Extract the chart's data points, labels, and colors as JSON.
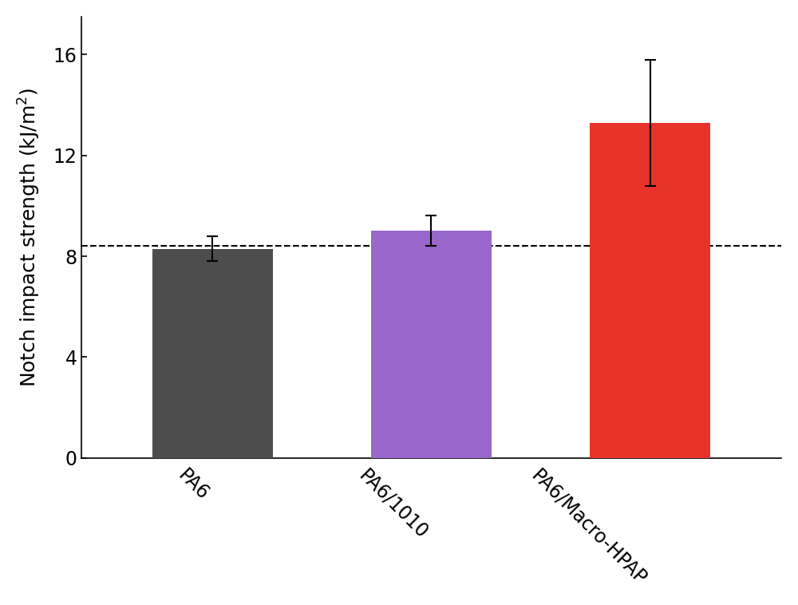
{
  "categories": [
    "PA6",
    "PA6/1010",
    "PA6/Macro-HPAP"
  ],
  "values": [
    8.3,
    9.0,
    13.3
  ],
  "errors": [
    0.5,
    0.6,
    2.5
  ],
  "bar_colors": [
    "#4d4d4d",
    "#9966cc",
    "#e8332a"
  ],
  "bar_width": 0.55,
  "dashed_line_y": 8.4,
  "ylabel": "Notch impact strength (kJ/m$^2$)",
  "ylim": [
    0,
    17.5
  ],
  "yticks": [
    0,
    4,
    8,
    12,
    16
  ],
  "background_color": "#ffffff",
  "error_color": "black",
  "error_capsize": 5,
  "error_linewidth": 1.5,
  "bar_edge_color": "none",
  "dashed_line_color": "black",
  "dashed_line_style": "--",
  "dashed_line_linewidth": 1.5,
  "ylabel_fontsize": 18,
  "tick_fontsize": 17,
  "xlabel_fontsize": 17,
  "xlabel_rotation": -45,
  "spine_linewidth": 1.2
}
